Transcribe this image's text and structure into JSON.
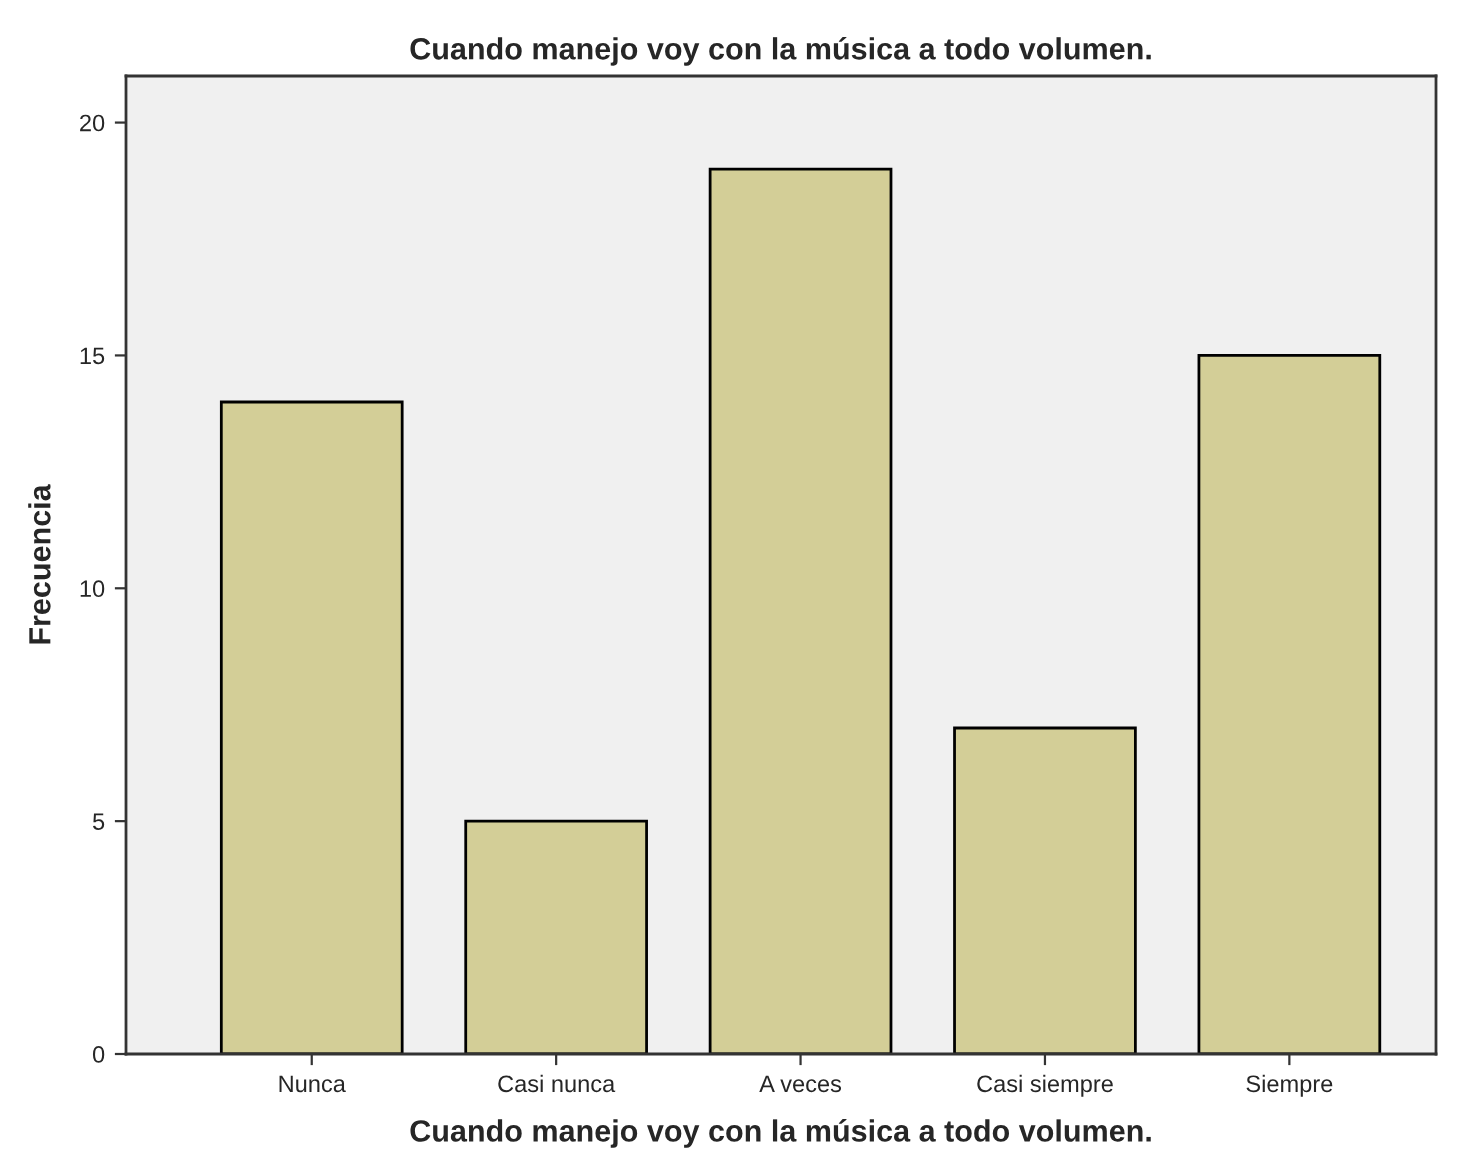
{
  "chart_data": {
    "type": "bar",
    "title": "Cuando manejo voy con la música a todo volumen.",
    "xlabel": "Cuando manejo voy con la música a todo volumen.",
    "ylabel": "Frecuencia",
    "categories": [
      "Nunca",
      "Casi nunca",
      "A veces",
      "Casi siempre",
      "Siempre"
    ],
    "values": [
      14,
      5,
      19,
      7,
      15
    ],
    "color": "#d3ce97",
    "ylim": [
      0,
      21
    ],
    "yticks": [
      0,
      5,
      10,
      15,
      20
    ],
    "grid": false,
    "legend": false
  }
}
